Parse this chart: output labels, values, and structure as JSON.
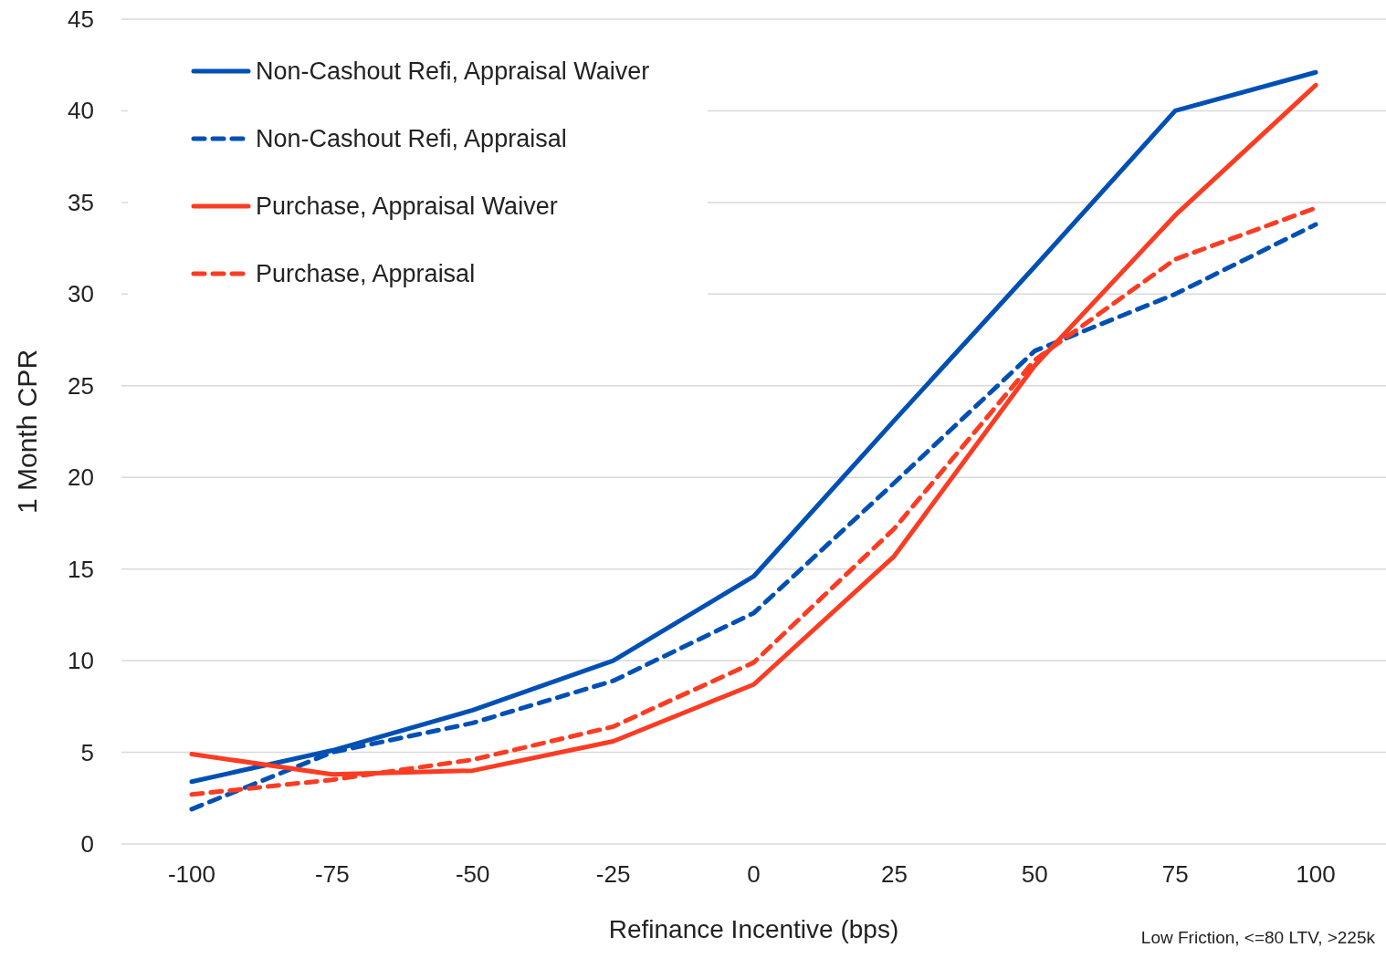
{
  "chart_data": {
    "type": "line",
    "xlabel": "Refinance Incentive (bps)",
    "ylabel": "1 Month CPR",
    "categories": [
      "-100",
      "-75",
      "-50",
      "-25",
      "0",
      "25",
      "50",
      "75",
      "100"
    ],
    "series": [
      {
        "name": "Non-Cashout Refi, Appraisal Waiver",
        "color": "#0050b4",
        "line_style": "solid",
        "values": [
          3.4,
          5.1,
          7.3,
          10.0,
          14.6,
          23.1,
          31.5,
          40.0,
          42.1
        ]
      },
      {
        "name": "Non-Cashout Refi, Appraisal",
        "color": "#0050b4",
        "line_style": "dashed",
        "values": [
          1.9,
          5.0,
          6.6,
          8.9,
          12.6,
          19.7,
          26.9,
          30.0,
          33.8
        ]
      },
      {
        "name": "Purchase, Appraisal Waiver",
        "color": "#fa3c23",
        "line_style": "solid",
        "values": [
          4.9,
          3.8,
          4.0,
          5.6,
          8.7,
          15.7,
          26.1,
          34.3,
          41.4
        ]
      },
      {
        "name": "Purchase, Appraisal",
        "color": "#fa3c23",
        "line_style": "dashed",
        "values": [
          2.7,
          3.5,
          4.6,
          6.4,
          9.9,
          17.2,
          26.4,
          31.9,
          34.7
        ]
      }
    ],
    "ylim": [
      0,
      45
    ],
    "yticks": [
      0,
      5,
      10,
      15,
      20,
      25,
      30,
      35,
      40,
      45
    ],
    "grid": "y",
    "legend": "top left",
    "annotations": [
      "Low Friction, <=80 LTV, >225k"
    ]
  }
}
